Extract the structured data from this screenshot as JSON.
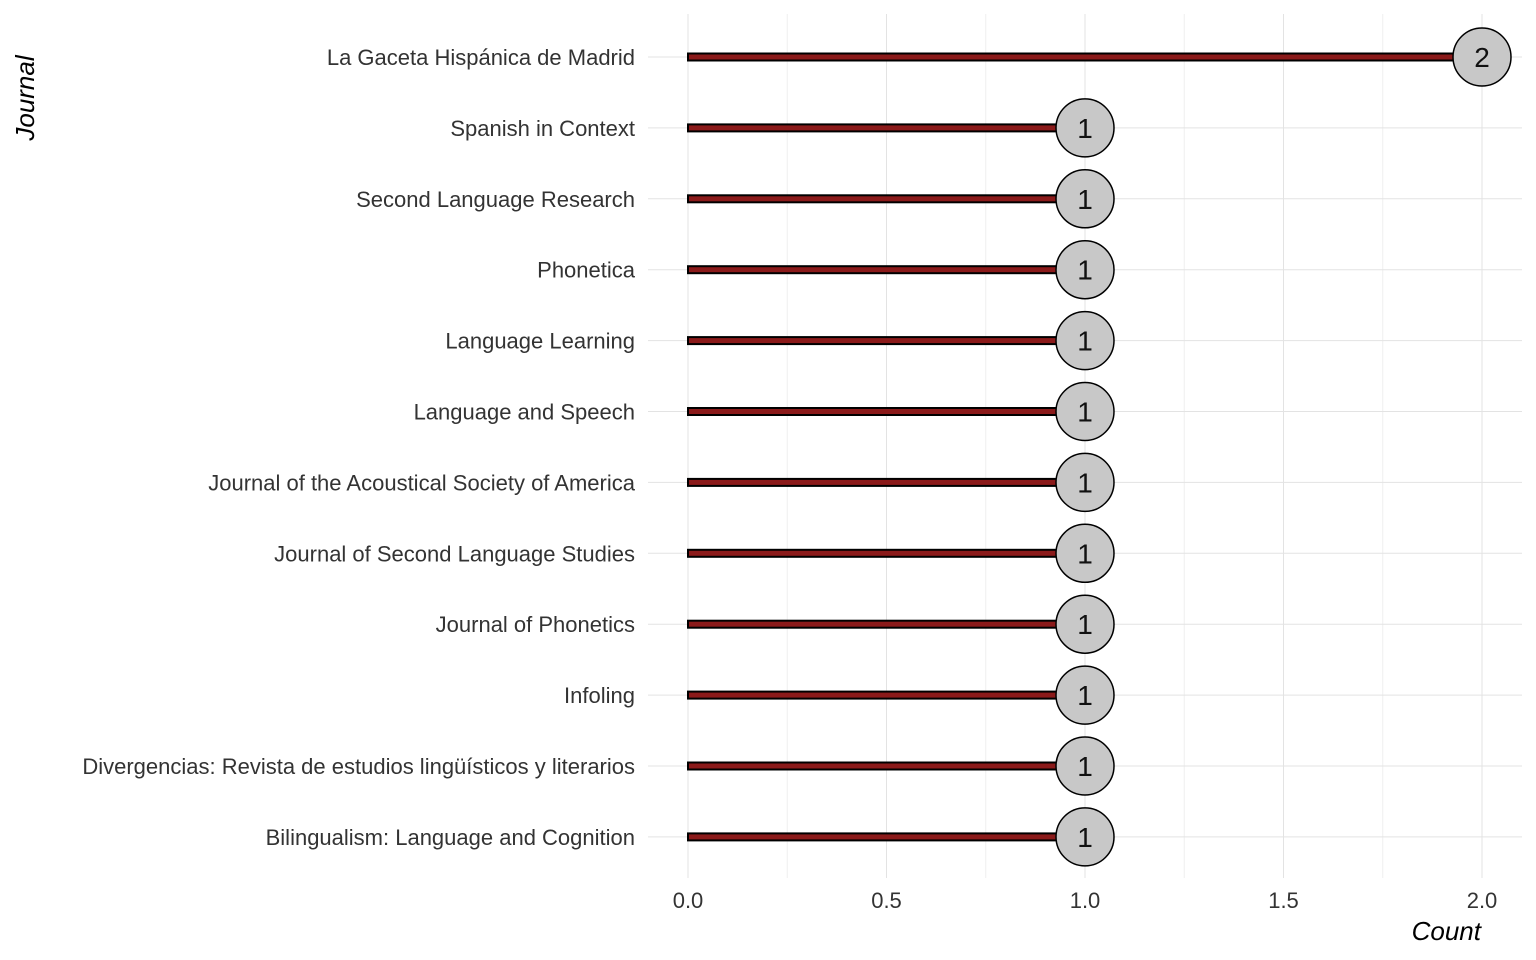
{
  "chart_data": {
    "type": "lollipop",
    "orientation": "horizontal",
    "xlabel": "Count",
    "ylabel": "Journal",
    "xlim": [
      0,
      2
    ],
    "x_ticks": [
      "0.0",
      "0.5",
      "1.0",
      "1.5",
      "2.0"
    ],
    "x_tick_values": [
      0,
      0.5,
      1,
      1.5,
      2
    ],
    "grid": true,
    "colors": {
      "stem": "#8b1a1a",
      "stem_outline": "#000000",
      "dot_fill": "#c8c8c8",
      "dot_outline": "#000000"
    },
    "categories": [
      "La Gaceta Hispánica de Madrid",
      "Spanish in Context",
      "Second Language Research",
      "Phonetica",
      "Language Learning",
      "Language and Speech",
      "Journal of the Acoustical Society of America",
      "Journal of Second Language Studies",
      "Journal of Phonetics",
      "Infoling",
      "Divergencias: Revista de estudios lingüísticos y literarios",
      "Bilingualism: Language and Cognition"
    ],
    "values": [
      2,
      1,
      1,
      1,
      1,
      1,
      1,
      1,
      1,
      1,
      1,
      1
    ]
  }
}
